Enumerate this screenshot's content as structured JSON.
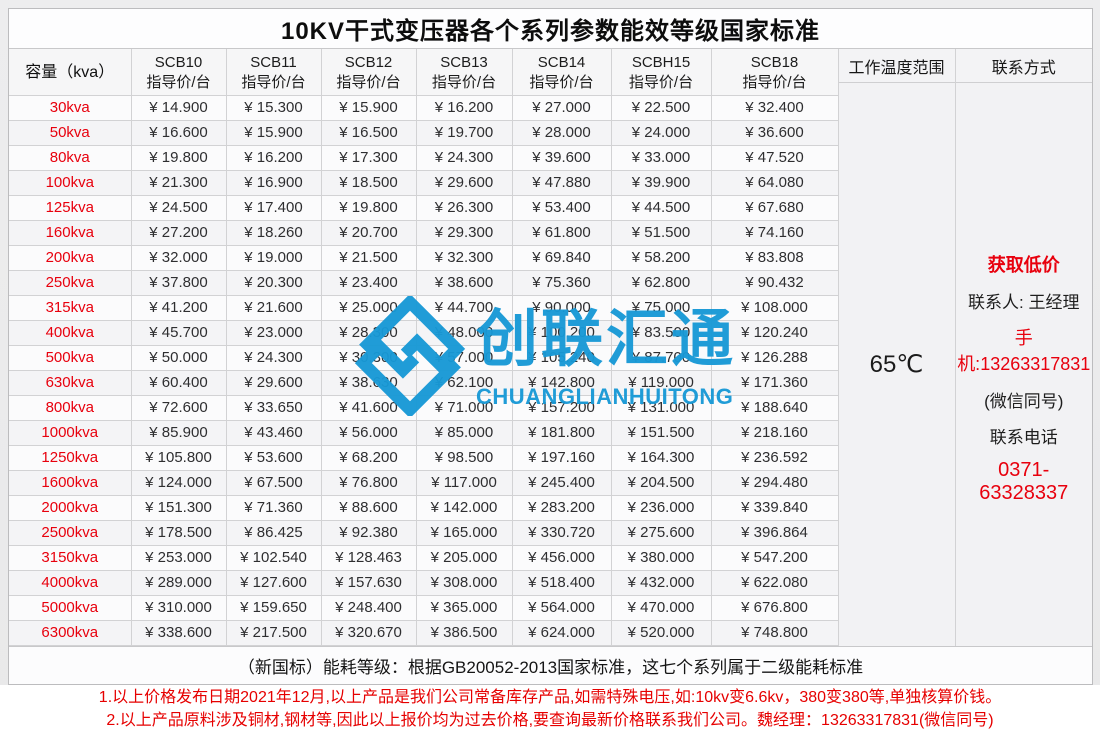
{
  "title": "10KV干式变压器各个系列参数能效等级国家标准",
  "table": {
    "capacity_header": "容量（kva）",
    "series_headers": [
      {
        "name": "SCB10",
        "sub": "指导价/台"
      },
      {
        "name": "SCB11",
        "sub": "指导价/台"
      },
      {
        "name": "SCB12",
        "sub": "指导价/台"
      },
      {
        "name": "SCB13",
        "sub": "指导价/台"
      },
      {
        "name": "SCB14",
        "sub": "指导价/台"
      },
      {
        "name": "SCBH15",
        "sub": "指导价/台"
      },
      {
        "name": "SCB18",
        "sub": "指导价/台"
      }
    ],
    "rows": [
      {
        "capacity": "30kva",
        "prices": [
          "¥ 14.900",
          "¥ 15.300",
          "¥ 15.900",
          "¥ 16.200",
          "¥ 27.000",
          "¥ 22.500",
          "¥ 32.400"
        ]
      },
      {
        "capacity": "50kva",
        "prices": [
          "¥ 16.600",
          "¥ 15.900",
          "¥ 16.500",
          "¥ 19.700",
          "¥ 28.000",
          "¥ 24.000",
          "¥ 36.600"
        ]
      },
      {
        "capacity": "80kva",
        "prices": [
          "¥ 19.800",
          "¥ 16.200",
          "¥ 17.300",
          "¥ 24.300",
          "¥ 39.600",
          "¥ 33.000",
          "¥ 47.520"
        ]
      },
      {
        "capacity": "100kva",
        "prices": [
          "¥ 21.300",
          "¥ 16.900",
          "¥ 18.500",
          "¥ 29.600",
          "¥ 47.880",
          "¥ 39.900",
          "¥ 64.080"
        ]
      },
      {
        "capacity": "125kva",
        "prices": [
          "¥ 24.500",
          "¥ 17.400",
          "¥ 19.800",
          "¥ 26.300",
          "¥ 53.400",
          "¥ 44.500",
          "¥ 67.680"
        ]
      },
      {
        "capacity": "160kva",
        "prices": [
          "¥ 27.200",
          "¥ 18.260",
          "¥ 20.700",
          "¥ 29.300",
          "¥ 61.800",
          "¥ 51.500",
          "¥ 74.160"
        ]
      },
      {
        "capacity": "200kva",
        "prices": [
          "¥ 32.000",
          "¥ 19.000",
          "¥ 21.500",
          "¥ 32.300",
          "¥ 69.840",
          "¥ 58.200",
          "¥ 83.808"
        ]
      },
      {
        "capacity": "250kva",
        "prices": [
          "¥ 37.800",
          "¥ 20.300",
          "¥ 23.400",
          "¥ 38.600",
          "¥ 75.360",
          "¥ 62.800",
          "¥ 90.432"
        ]
      },
      {
        "capacity": "315kva",
        "prices": [
          "¥ 41.200",
          "¥ 21.600",
          "¥ 25.000",
          "¥ 44.700",
          "¥ 90.000",
          "¥ 75.000",
          "¥ 108.000"
        ]
      },
      {
        "capacity": "400kva",
        "prices": [
          "¥ 45.700",
          "¥ 23.000",
          "¥ 28.300",
          "¥ 48.000",
          "¥ 100.200",
          "¥ 83.500",
          "¥ 120.240"
        ]
      },
      {
        "capacity": "500kva",
        "prices": [
          "¥ 50.000",
          "¥ 24.300",
          "¥ 30.300",
          "¥ 57.000",
          "¥ 105.240",
          "¥ 87.700",
          "¥ 126.288"
        ]
      },
      {
        "capacity": "630kva",
        "prices": [
          "¥ 60.400",
          "¥ 29.600",
          "¥ 38.630",
          "¥ 62.100",
          "¥ 142.800",
          "¥ 119.000",
          "¥ 171.360"
        ]
      },
      {
        "capacity": "800kva",
        "prices": [
          "¥ 72.600",
          "¥ 33.650",
          "¥ 41.600",
          "¥ 71.000",
          "¥ 157.200",
          "¥ 131.000",
          "¥ 188.640"
        ]
      },
      {
        "capacity": "1000kva",
        "prices": [
          "¥ 85.900",
          "¥ 43.460",
          "¥ 56.000",
          "¥ 85.000",
          "¥ 181.800",
          "¥ 151.500",
          "¥ 218.160"
        ]
      },
      {
        "capacity": "1250kva",
        "prices": [
          "¥ 105.800",
          "¥ 53.600",
          "¥ 68.200",
          "¥ 98.500",
          "¥ 197.160",
          "¥ 164.300",
          "¥ 236.592"
        ]
      },
      {
        "capacity": "1600kva",
        "prices": [
          "¥ 124.000",
          "¥ 67.500",
          "¥ 76.800",
          "¥ 117.000",
          "¥ 245.400",
          "¥ 204.500",
          "¥ 294.480"
        ]
      },
      {
        "capacity": "2000kva",
        "prices": [
          "¥ 151.300",
          "¥ 71.360",
          "¥ 88.600",
          "¥ 142.000",
          "¥ 283.200",
          "¥ 236.000",
          "¥ 339.840"
        ]
      },
      {
        "capacity": "2500kva",
        "prices": [
          "¥ 178.500",
          "¥ 86.425",
          "¥ 92.380",
          "¥ 165.000",
          "¥ 330.720",
          "¥ 275.600",
          "¥ 396.864"
        ]
      },
      {
        "capacity": "3150kva",
        "prices": [
          "¥ 253.000",
          "¥ 102.540",
          "¥ 128.463",
          "¥ 205.000",
          "¥ 456.000",
          "¥ 380.000",
          "¥ 547.200"
        ]
      },
      {
        "capacity": "4000kva",
        "prices": [
          "¥ 289.000",
          "¥ 127.600",
          "¥ 157.630",
          "¥ 308.000",
          "¥ 518.400",
          "¥ 432.000",
          "¥ 622.080"
        ]
      },
      {
        "capacity": "5000kva",
        "prices": [
          "¥ 310.000",
          "¥ 159.650",
          "¥ 248.400",
          "¥ 365.000",
          "¥ 564.000",
          "¥ 470.000",
          "¥ 676.800"
        ]
      },
      {
        "capacity": "6300kva",
        "prices": [
          "¥ 338.600",
          "¥ 217.500",
          "¥ 320.670",
          "¥ 386.500",
          "¥ 624.000",
          "¥ 520.000",
          "¥ 748.800"
        ]
      }
    ]
  },
  "right_panel": {
    "temp_header": "工作温度范围",
    "temp_value": "65℃",
    "contact_header": "联系方式",
    "contact": {
      "promo": "获取低价",
      "person": "联系人: 王经理",
      "mobile": "手机:13263317831",
      "wechat_note": "(微信同号)",
      "phone_label": "联系电话",
      "phone": "0371-63328337"
    }
  },
  "footer": {
    "standard_note": "（新国标）能耗等级：根据GB20052-2013国家标准，这七个系列属于二级能耗标准",
    "notes": [
      "1.以上价格发布日期2021年12月,以上产品是我们公司常备库存产品,如需特殊电压,如:10kv变6.6kv，380变380等,单独核算价钱。",
      "2.以上产品原料涉及铜材,钢材等,因此以上报价均为过去价格,要查询最新价格联系我们公司。魏经理：13263317831(微信同号)"
    ]
  },
  "watermark": {
    "cn": "创联汇通",
    "en": "CHUANGLIANHUITONG",
    "color": "#1899d6",
    "logo_icon": "interlocked-diamond-logo"
  }
}
